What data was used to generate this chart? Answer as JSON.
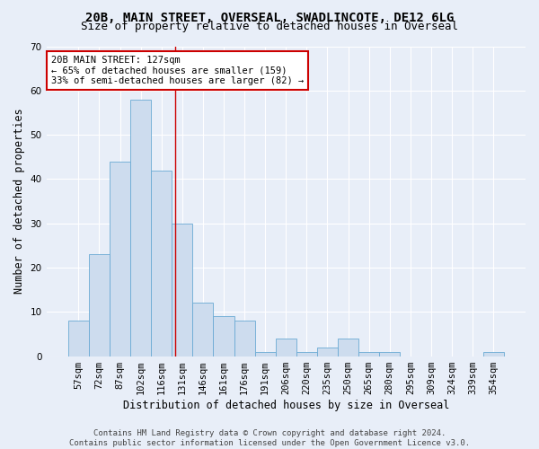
{
  "title_line1": "20B, MAIN STREET, OVERSEAL, SWADLINCOTE, DE12 6LG",
  "title_line2": "Size of property relative to detached houses in Overseal",
  "xlabel": "Distribution of detached houses by size in Overseal",
  "ylabel": "Number of detached properties",
  "bar_labels": [
    "57sqm",
    "72sqm",
    "87sqm",
    "102sqm",
    "116sqm",
    "131sqm",
    "146sqm",
    "161sqm",
    "176sqm",
    "191sqm",
    "206sqm",
    "220sqm",
    "235sqm",
    "250sqm",
    "265sqm",
    "280sqm",
    "295sqm",
    "309sqm",
    "324sqm",
    "339sqm",
    "354sqm"
  ],
  "bar_values": [
    8,
    23,
    44,
    58,
    42,
    30,
    12,
    9,
    8,
    1,
    4,
    1,
    2,
    4,
    1,
    1,
    0,
    0,
    0,
    0,
    1
  ],
  "bar_color": "#cddcee",
  "bar_edge_color": "#6aaad4",
  "vline_x": 4.67,
  "annotation_text": "20B MAIN STREET: 127sqm\n← 65% of detached houses are smaller (159)\n33% of semi-detached houses are larger (82) →",
  "annotation_box_color": "#ffffff",
  "annotation_box_edge": "#cc0000",
  "vline_color": "#cc0000",
  "ylim": [
    0,
    70
  ],
  "yticks": [
    0,
    10,
    20,
    30,
    40,
    50,
    60,
    70
  ],
  "background_color": "#e8eef8",
  "grid_color": "#ffffff",
  "footer": "Contains HM Land Registry data © Crown copyright and database right 2024.\nContains public sector information licensed under the Open Government Licence v3.0.",
  "title_fontsize": 10,
  "subtitle_fontsize": 9,
  "axis_label_fontsize": 8.5,
  "tick_fontsize": 7.5,
  "annotation_fontsize": 7.5,
  "footer_fontsize": 6.5
}
